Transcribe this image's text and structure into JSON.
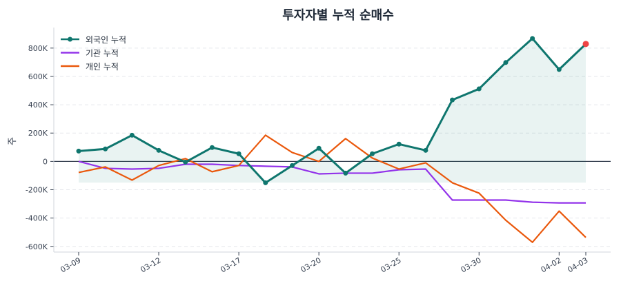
{
  "chart_data": {
    "type": "line",
    "title": "투자자별 누적 순매수",
    "xlabel": "",
    "ylabel": "주",
    "x": [
      "03-09",
      "03-10",
      "03-11",
      "03-12",
      "03-13",
      "03-16",
      "03-17",
      "03-18",
      "03-19",
      "03-20",
      "03-23",
      "03-24",
      "03-25",
      "03-26",
      "03-27",
      "03-30",
      "03-31",
      "04-01",
      "04-02",
      "04-03"
    ],
    "xticks": [
      "03-09",
      "03-12",
      "03-17",
      "03-20",
      "03-25",
      "03-30",
      "04-02",
      "04-03"
    ],
    "yticks": [
      -600000,
      -400000,
      -200000,
      0,
      200000,
      400000,
      600000,
      800000
    ],
    "ytick_labels": [
      "-600K",
      "-400K",
      "-200K",
      "0",
      "200K",
      "400K",
      "600K",
      "800K"
    ],
    "ylim": [
      -640000,
      945000
    ],
    "grid": "horizontal dashed",
    "legend": "top-left",
    "series": [
      {
        "name": "외국인 누적",
        "color": "#0f766e",
        "markers": true,
        "fill": true,
        "values": [
          73000,
          88000,
          185000,
          78000,
          -5000,
          98000,
          54000,
          -151000,
          -29000,
          93000,
          -83000,
          54000,
          122000,
          78000,
          434000,
          512000,
          698000,
          868000,
          649000,
          829000
        ]
      },
      {
        "name": "기관 누적",
        "color": "#9333ea",
        "markers": false,
        "values": [
          0,
          -49000,
          -54000,
          -49000,
          -20000,
          -20000,
          -29000,
          -34000,
          -39000,
          -88000,
          -83000,
          -83000,
          -59000,
          -54000,
          -273000,
          -273000,
          -273000,
          -288000,
          -293000,
          -293000
        ]
      },
      {
        "name": "개인 누적",
        "color": "#ea580c",
        "markers": false,
        "values": [
          -78000,
          -39000,
          -132000,
          -29000,
          20000,
          -73000,
          -29000,
          185000,
          63000,
          0,
          161000,
          24000,
          -54000,
          -10000,
          -151000,
          -224000,
          -415000,
          -571000,
          -351000,
          -537000
        ]
      }
    ],
    "highlight_last_point_color": "#ef4444",
    "fill_baseline": -150000
  }
}
